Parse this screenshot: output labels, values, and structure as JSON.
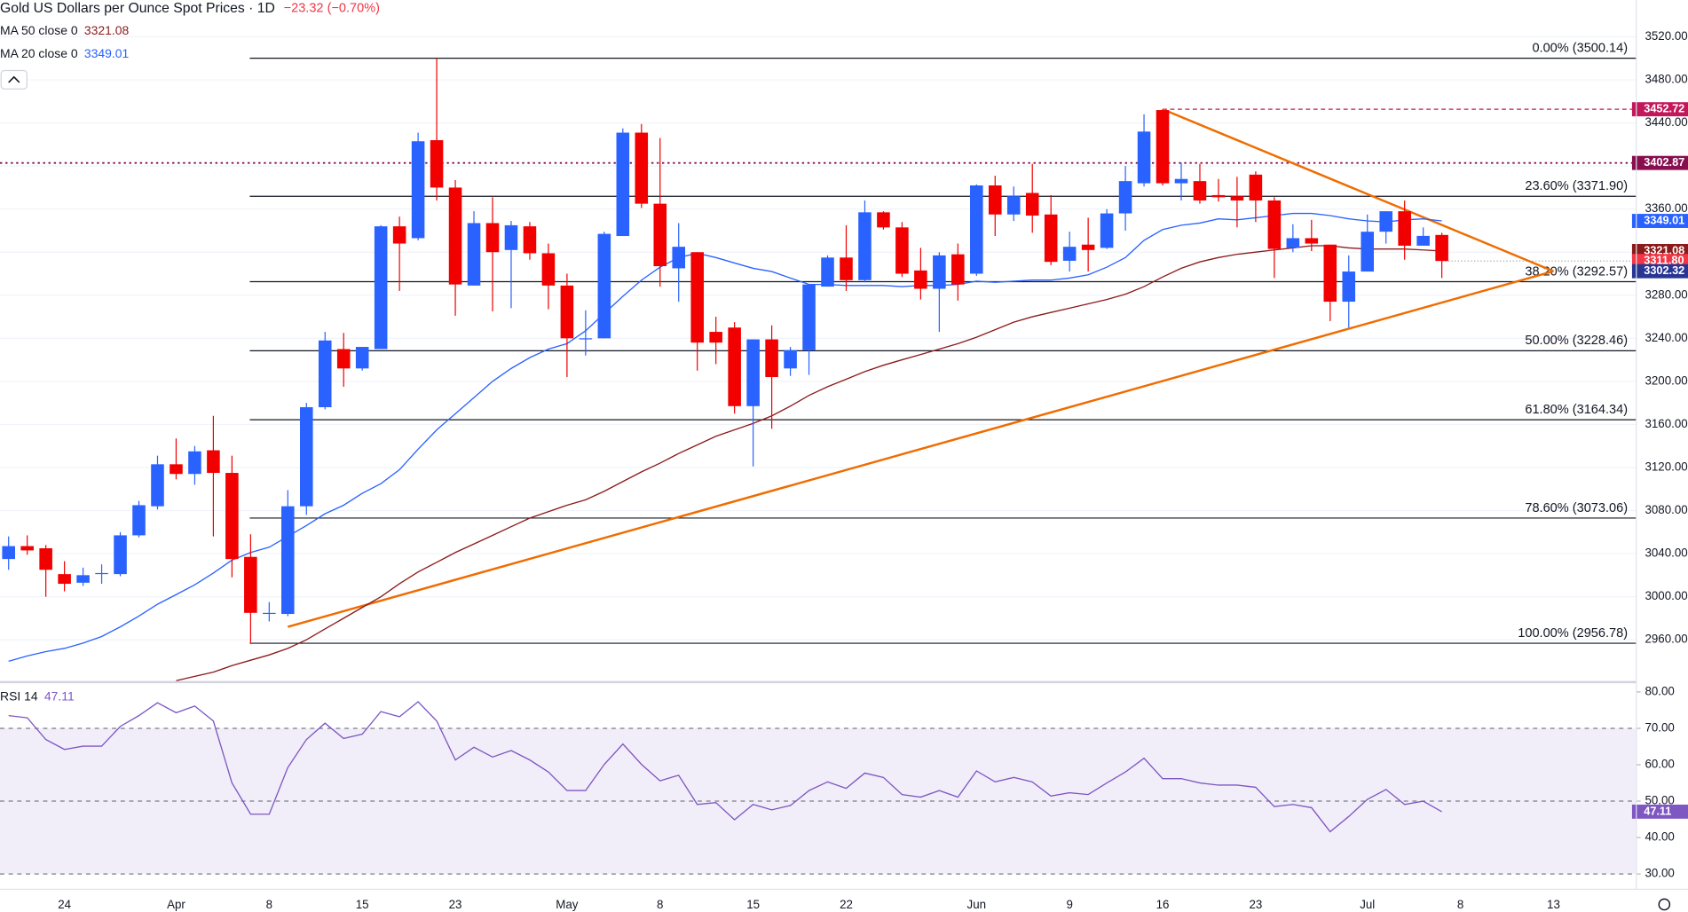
{
  "chart_data": {
    "type": "candlestick",
    "title": "Gold US Dollars per Ounce Spot Prices · 1D",
    "change": {
      "value": -23.32,
      "label": "−23.32 (−0.70%)",
      "color": "#f23645"
    },
    "up_color": "#2962ff",
    "down_color": "#f20000",
    "categories": [
      null,
      null,
      null,
      "24",
      null,
      null,
      null,
      null,
      null,
      "Apr",
      null,
      null,
      null,
      null,
      "8",
      null,
      null,
      null,
      null,
      "15",
      null,
      null,
      null,
      null,
      "23",
      null,
      null,
      null,
      null,
      null,
      "May",
      null,
      null,
      null,
      null,
      "8",
      null,
      null,
      null,
      null,
      "15",
      null,
      null,
      null,
      null,
      "22",
      null,
      null,
      null,
      null,
      null,
      null,
      "Jun",
      null,
      null,
      null,
      null,
      "9",
      null,
      null,
      null,
      null,
      "16",
      null,
      null,
      null,
      null,
      "23",
      null,
      null,
      null,
      null,
      null,
      "Jul",
      null,
      null,
      null,
      null,
      "8",
      null,
      null,
      null,
      null,
      "13",
      null
    ],
    "open": [
      3035,
      3047,
      3045,
      3021,
      3013,
      3021,
      3021,
      3057,
      3084,
      3123,
      3114,
      3136,
      3115,
      3037,
      2984,
      2984,
      3084,
      3176,
      3230,
      3212,
      3230,
      3344,
      3333,
      3424,
      3380,
      3289,
      3347,
      3322,
      3344,
      3319,
      3289,
      3240,
      3240,
      3335,
      3431,
      3365,
      3305,
      3320,
      3246,
      3250,
      3177,
      3239,
      3212,
      3229,
      3288,
      3315,
      3294,
      3357,
      3343,
      3303,
      3286,
      3318,
      3300,
      3382,
      3355,
      3375,
      3355,
      3312,
      3327,
      3324,
      3356,
      3384,
      3452,
      3384,
      3386,
      3373,
      3372,
      3392,
      3368,
      3324,
      3333,
      3327,
      3274,
      3302,
      3339,
      3358,
      3326,
      3336,
      null,
      null,
      null,
      null,
      null,
      null,
      null
    ],
    "high": [
      3056,
      3057,
      3048,
      3033,
      3027,
      3030,
      3060,
      3089,
      3131,
      3147,
      3140,
      3168,
      3131,
      3058,
      2995,
      3099,
      3180,
      3246,
      3245,
      3232,
      3345,
      3353,
      3431,
      3500.14,
      3387,
      3358,
      3371,
      3349,
      3348,
      3328,
      3300,
      3266,
      3339,
      3435,
      3439,
      3426,
      3347,
      3320,
      3260,
      3255,
      3239,
      3252,
      3232,
      3290,
      3317,
      3345,
      3368,
      3358,
      3348,
      3324,
      3320,
      3328,
      3383,
      3391,
      3381,
      3402,
      3373,
      3339,
      3352,
      3360,
      3400,
      3448,
      3452.72,
      3403,
      3402,
      3388,
      3390,
      3395,
      3371,
      3346,
      3350,
      3327,
      3317,
      3355,
      3358,
      3368,
      3343,
      3338,
      null,
      null,
      null,
      null,
      null,
      null,
      null
    ],
    "low": [
      3025,
      3039,
      3000,
      3005,
      3010,
      3012,
      3019,
      3055,
      3081,
      3109,
      3104,
      3056,
      3018,
      2956.78,
      2977,
      2982,
      3076,
      3174,
      3195,
      3210,
      3230,
      3284,
      3331,
      3368,
      3261,
      3289,
      3265,
      3268,
      3313,
      3267,
      3204,
      3224,
      3240,
      3335,
      3361,
      3288,
      3274,
      3210,
      3216,
      3170,
      3121,
      3156,
      3205,
      3206,
      3288,
      3284,
      3292,
      3341,
      3297,
      3276,
      3246,
      3275,
      3298,
      3335,
      3349,
      3338,
      3308,
      3302,
      3302,
      3323,
      3340,
      3381,
      3382,
      3368,
      3365,
      3367,
      3343,
      3348,
      3296,
      3320,
      3321,
      3256,
      3250,
      3302,
      3328,
      3313,
      3326,
      3296,
      null,
      null,
      null,
      null,
      null,
      null,
      null
    ],
    "close": [
      3047,
      3043,
      3025,
      3012,
      3020,
      3022,
      3057,
      3085,
      3123,
      3114,
      3135,
      3115,
      3035,
      2985,
      2985,
      3084,
      3176,
      3238,
      3212,
      3232,
      3344,
      3328,
      3423,
      3380,
      3290,
      3347,
      3320,
      3345,
      3319,
      3289,
      3240,
      3240,
      3337,
      3431,
      3365,
      3307,
      3325,
      3236,
      3236,
      3177,
      3239,
      3204,
      3229,
      3290,
      3315,
      3294,
      3357,
      3343,
      3300,
      3286,
      3317,
      3290,
      3382,
      3355,
      3372,
      3354,
      3311,
      3325,
      3322,
      3356,
      3386,
      3432,
      3384,
      3388,
      3368,
      3371,
      3368,
      3368,
      3323,
      3333,
      3328,
      3274,
      3302,
      3339,
      3358,
      3326,
      3335.12,
      3311.8,
      null,
      null,
      null,
      null,
      null,
      null,
      null
    ],
    "series": [
      {
        "name": "MA 50 close 0",
        "color": "#8b1a1a",
        "values": [
          null,
          null,
          null,
          null,
          null,
          null,
          null,
          null,
          null,
          2922,
          2926,
          2930,
          2936,
          2941,
          2946,
          2952,
          2960,
          2970,
          2980,
          2990,
          3000,
          3012,
          3023,
          3032,
          3041,
          3049,
          3057,
          3065,
          3073,
          3079,
          3085,
          3090,
          3098,
          3107,
          3116,
          3124,
          3133,
          3141,
          3149,
          3155,
          3161,
          3168,
          3177,
          3187,
          3195,
          3202,
          3209,
          3215,
          3220,
          3225,
          3230,
          3235,
          3241,
          3248,
          3255,
          3260,
          3264,
          3268,
          3272,
          3276,
          3281,
          3288,
          3297,
          3305,
          3311,
          3315,
          3318,
          3320,
          3322,
          3324,
          3326,
          3326,
          3324,
          3323,
          3323,
          3323,
          3322,
          3321.08,
          null,
          null,
          null,
          null,
          null,
          null,
          null
        ]
      },
      {
        "name": "MA 20 close 0",
        "color": "#2962ff",
        "values": [
          2940,
          2945,
          2949,
          2952,
          2957,
          2963,
          2972,
          2982,
          2993,
          3002,
          3011,
          3022,
          3034,
          3041,
          3046,
          3056,
          3066,
          3077,
          3085,
          3096,
          3105,
          3118,
          3137,
          3155,
          3170,
          3185,
          3200,
          3212,
          3222,
          3230,
          3235,
          3247,
          3263,
          3279,
          3294,
          3306,
          3315,
          3319,
          3315,
          3310,
          3305,
          3302,
          3296,
          3290,
          3290,
          3289,
          3289,
          3289,
          3288,
          3289,
          3289,
          3290,
          3293,
          3292,
          3293,
          3294,
          3294,
          3296,
          3299,
          3306,
          3315,
          3331,
          3341,
          3345,
          3347,
          3351,
          3350,
          3352,
          3354,
          3356,
          3356,
          3354,
          3351,
          3349,
          3348,
          3350,
          3351,
          3349.01,
          null,
          null,
          null,
          null,
          null,
          null,
          null
        ]
      }
    ],
    "ylim": [
      2921.7,
      3554.2
    ],
    "yticks": [
      {
        "value": 2960,
        "label": "2960.00"
      },
      {
        "value": 3000,
        "label": "3000.00"
      },
      {
        "value": 3040,
        "label": "3040.00"
      },
      {
        "value": 3080,
        "label": "3080.00"
      },
      {
        "value": 3120,
        "label": "3120.00"
      },
      {
        "value": 3160,
        "label": "3160.00"
      },
      {
        "value": 3200,
        "label": "3200.00"
      },
      {
        "value": 3240,
        "label": "3240.00"
      },
      {
        "value": 3280,
        "label": "3280.00"
      },
      {
        "value": 3320,
        "label": "3320.00"
      },
      {
        "value": 3360,
        "label": "3360.00"
      },
      {
        "value": 3400,
        "label": "3400.00"
      },
      {
        "value": 3440,
        "label": "3440.00"
      },
      {
        "value": 3480,
        "label": "3480.00"
      },
      {
        "value": 3520,
        "label": "3520.00"
      }
    ],
    "fib_levels": [
      {
        "value": 3500.14,
        "label": "0.00% (3500.14)"
      },
      {
        "value": 3371.9,
        "label": "23.60% (3371.90)"
      },
      {
        "value": 3292.57,
        "label": "38.20% (3292.57)"
      },
      {
        "value": 3228.46,
        "label": "50.00% (3228.46)"
      },
      {
        "value": 3164.34,
        "label": "61.80% (3164.34)"
      },
      {
        "value": 3073.06,
        "label": "78.60% (3073.06)"
      },
      {
        "value": 2956.78,
        "label": "100.00% (2956.78)"
      }
    ],
    "trendlines": [
      {
        "color": "#ef6c00",
        "points": [
          [
            62,
            3452.72
          ],
          [
            83,
            3302.32
          ]
        ]
      },
      {
        "color": "#ef6c00",
        "points": [
          [
            15,
            2972
          ],
          [
            83,
            3302.32
          ]
        ]
      }
    ],
    "markers": [
      {
        "value": 3452.72,
        "label": "3452.72",
        "color": "#c2185b",
        "line": "dashed"
      },
      {
        "value": 3402.87,
        "label": "3402.87",
        "color": "#880e4f",
        "line": "dotted"
      },
      {
        "value": 3311.8,
        "label": "3311.80",
        "color": "#f23645",
        "line": "price"
      },
      {
        "value": 3302.32,
        "label": "3302.32",
        "color": "#283593",
        "line": "none"
      }
    ],
    "rsi": {
      "name": "RSI 14",
      "color": "#7e57c2",
      "values": [
        73.5,
        72.9,
        66.9,
        64.2,
        65.1,
        65.1,
        70.5,
        73.5,
        77.0,
        74.3,
        76.1,
        72.0,
        55.0,
        46.4,
        46.4,
        59.2,
        66.9,
        71.4,
        67.2,
        68.4,
        74.6,
        73.2,
        77.3,
        72.0,
        61.3,
        64.8,
        62.1,
        63.9,
        61.3,
        58.0,
        52.9,
        52.9,
        60.1,
        65.7,
        60.1,
        55.6,
        57.1,
        49.1,
        49.6,
        44.9,
        49.1,
        47.6,
        48.8,
        52.9,
        55.3,
        53.5,
        57.7,
        56.5,
        51.8,
        51.1,
        52.9,
        51.1,
        58.3,
        55.3,
        56.5,
        55.3,
        51.4,
        52.3,
        51.8,
        55.0,
        58.0,
        61.8,
        56.2,
        56.2,
        55.0,
        54.4,
        54.4,
        53.8,
        48.5,
        49.1,
        48.2,
        41.6,
        45.8,
        50.5,
        53.2,
        49.1,
        50.0,
        47.11,
        null,
        null,
        null,
        null,
        null,
        null,
        null
      ],
      "ylim": [
        25.8,
        82.4
      ],
      "yticks": [
        {
          "value": 30,
          "label": "30.00"
        },
        {
          "value": 40,
          "label": "40.00"
        },
        {
          "value": 50,
          "label": "50.00"
        },
        {
          "value": 60,
          "label": "60.00"
        },
        {
          "value": 70,
          "label": "70.00"
        },
        {
          "value": 80,
          "label": "80.00"
        }
      ],
      "bands": [
        30,
        70
      ],
      "midline": 50
    }
  }
}
